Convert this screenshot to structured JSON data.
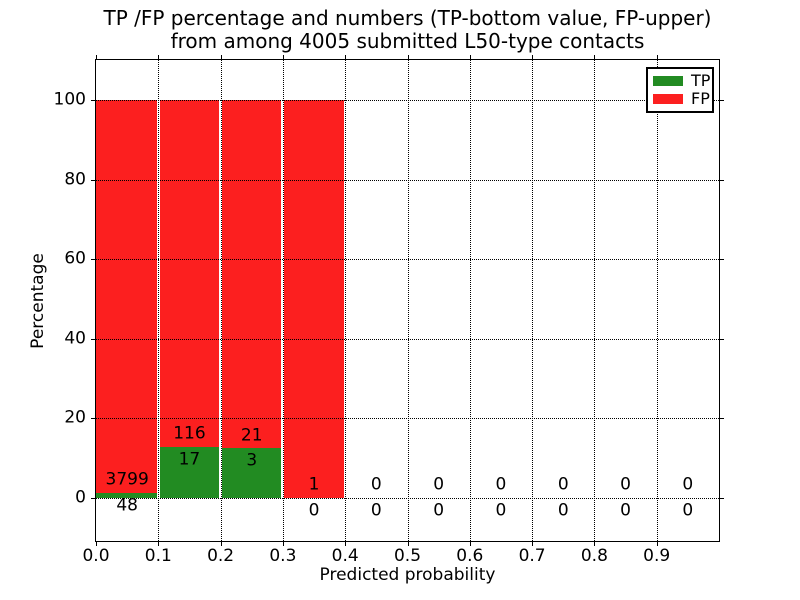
{
  "title": {
    "line1": "TP /FP percentage and numbers (TP-bottom value, FP-upper)",
    "line2": "from among 4005 submitted L50-type contacts"
  },
  "axes": {
    "xlabel": "Predicted probability",
    "ylabel": "Percentage"
  },
  "colors": {
    "tp": "#228b22",
    "fp": "#fc1f1f",
    "background": "#ffffff",
    "text": "#000000"
  },
  "chart_data": {
    "type": "bar",
    "stacked": true,
    "title": "TP /FP percentage and numbers (TP-bottom value, FP-upper) from among 4005 submitted L50-type contacts",
    "xlabel": "Predicted probability",
    "ylabel": "Percentage",
    "xlim": [
      0.0,
      1.0
    ],
    "ylim": [
      -10,
      110
    ],
    "grid": "dotted",
    "legend_position": "upper right",
    "total_submitted_contacts": 4005,
    "xticks": [
      0.0,
      0.1,
      0.2,
      0.3,
      0.4,
      0.5,
      0.6,
      0.7,
      0.8,
      0.9
    ],
    "yticks": [
      0,
      20,
      40,
      60,
      80,
      100
    ],
    "series": [
      {
        "name": "TP",
        "color": "#228b22"
      },
      {
        "name": "FP",
        "color": "#fc1f1f"
      }
    ],
    "bins": [
      {
        "range": [
          0.0,
          0.1
        ],
        "tp": 48,
        "fp": 3799,
        "tp_pct": 1.25,
        "fp_pct": 98.75
      },
      {
        "range": [
          0.1,
          0.2
        ],
        "tp": 17,
        "fp": 116,
        "tp_pct": 12.78,
        "fp_pct": 87.22
      },
      {
        "range": [
          0.2,
          0.3
        ],
        "tp": 3,
        "fp": 21,
        "tp_pct": 12.5,
        "fp_pct": 87.5
      },
      {
        "range": [
          0.3,
          0.4
        ],
        "tp": 0,
        "fp": 1,
        "tp_pct": 0,
        "fp_pct": 100
      },
      {
        "range": [
          0.4,
          0.5
        ],
        "tp": 0,
        "fp": 0,
        "tp_pct": 0,
        "fp_pct": 0
      },
      {
        "range": [
          0.5,
          0.6
        ],
        "tp": 0,
        "fp": 0,
        "tp_pct": 0,
        "fp_pct": 0
      },
      {
        "range": [
          0.6,
          0.7
        ],
        "tp": 0,
        "fp": 0,
        "tp_pct": 0,
        "fp_pct": 0
      },
      {
        "range": [
          0.7,
          0.8
        ],
        "tp": 0,
        "fp": 0,
        "tp_pct": 0,
        "fp_pct": 0
      },
      {
        "range": [
          0.8,
          0.9
        ],
        "tp": 0,
        "fp": 0,
        "tp_pct": 0,
        "fp_pct": 0
      },
      {
        "range": [
          0.9,
          1.0
        ],
        "tp": 0,
        "fp": 0,
        "tp_pct": 0,
        "fp_pct": 0
      }
    ]
  }
}
